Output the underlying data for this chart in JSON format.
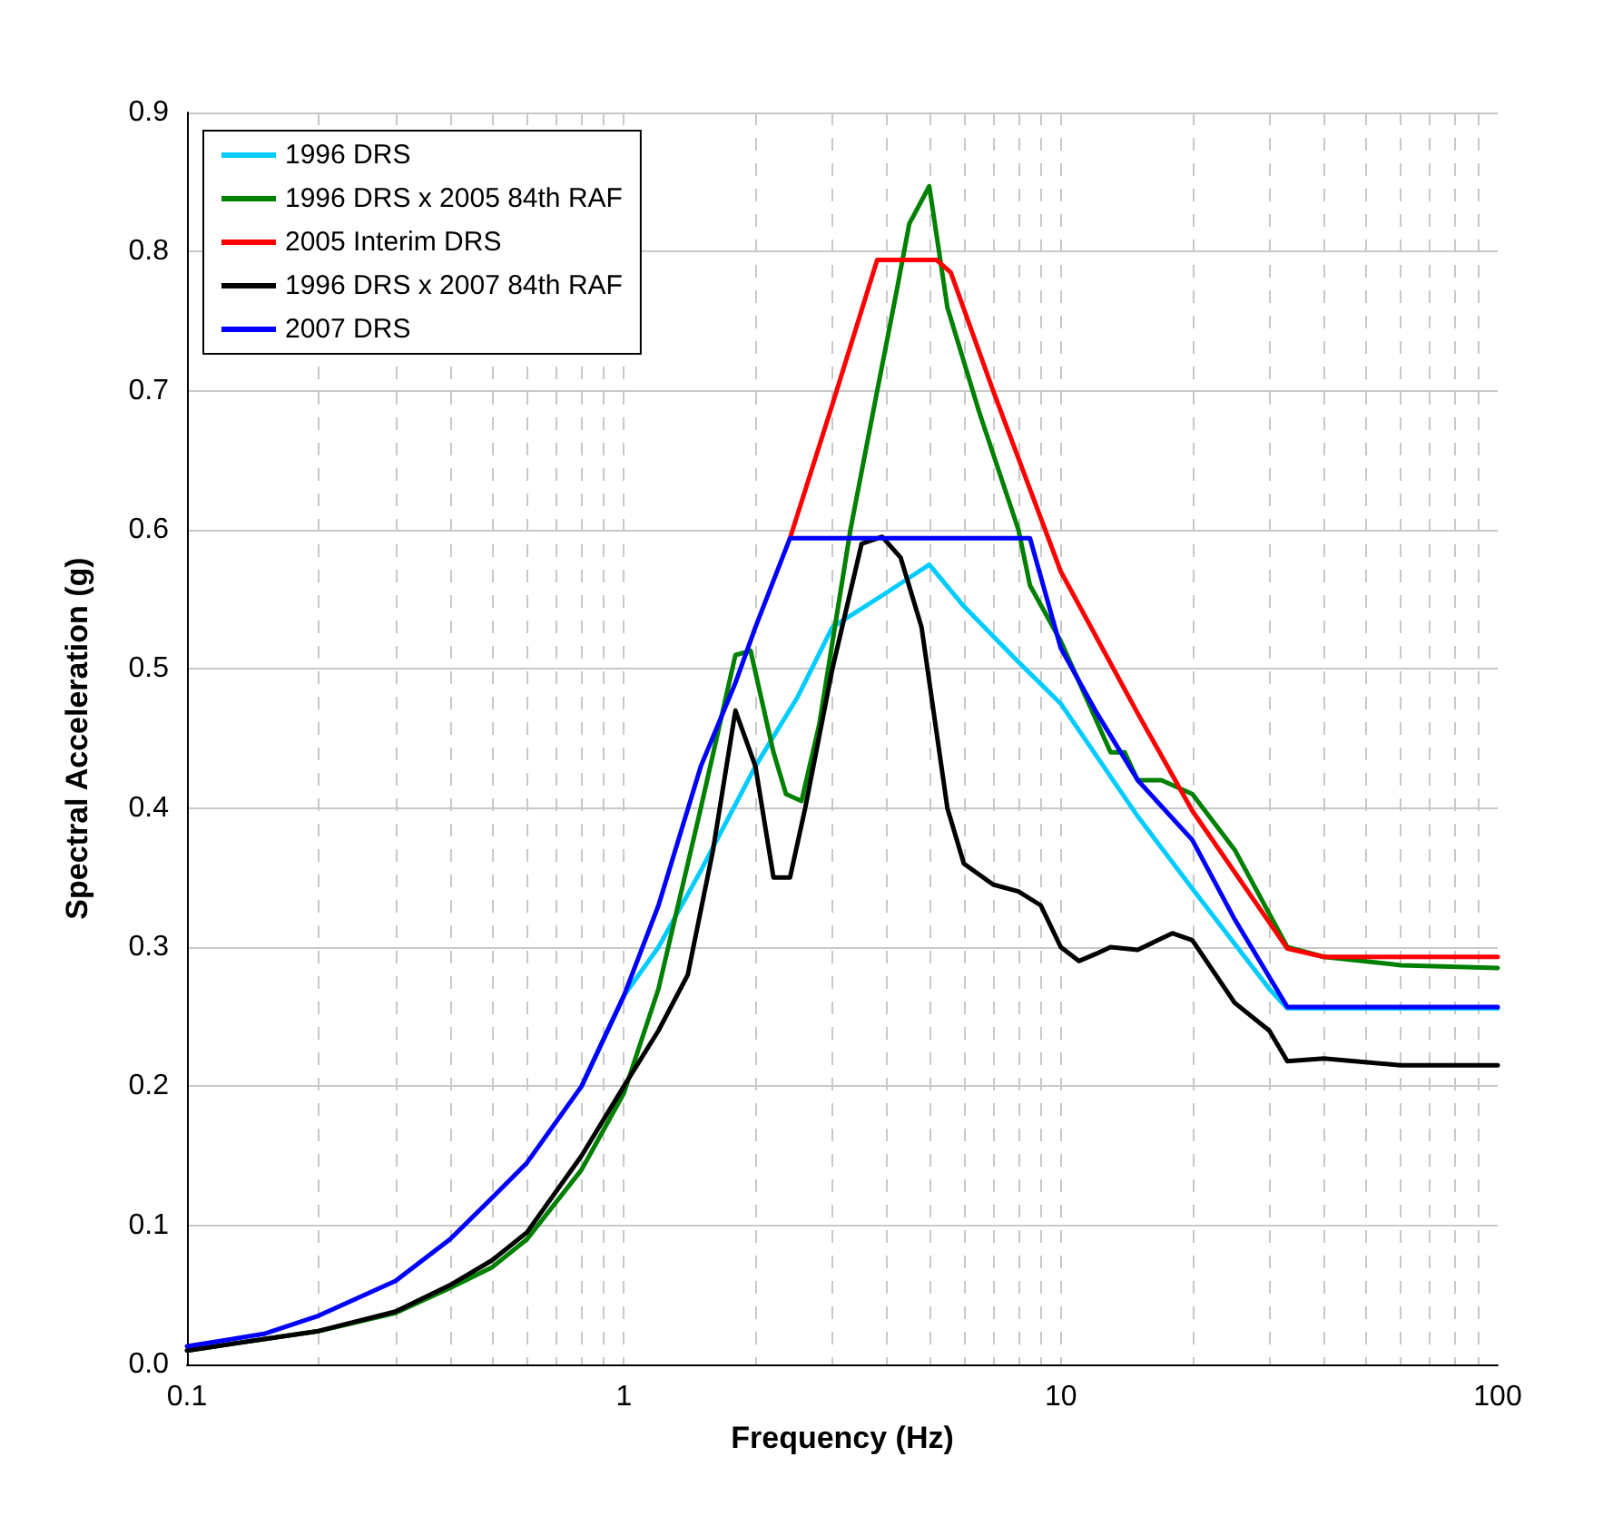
{
  "chart_data": {
    "type": "line",
    "xlabel": "Frequency (Hz)",
    "ylabel": "Spectral Acceleration (g)",
    "log": "x",
    "xlim": [
      0.1,
      100
    ],
    "xticks": [
      0.1,
      1,
      10,
      100
    ],
    "ylim": [
      0,
      0.9
    ],
    "yticks": [
      {
        "value": 0,
        "label": "0.0"
      },
      0.1,
      0.2,
      0.3,
      0.4,
      0.5,
      0.6,
      0.7,
      0.8,
      0.9
    ],
    "grid": true,
    "legend": "top left",
    "marker": "none",
    "line_style": "solid",
    "series": [
      {
        "name": "1996 DRS",
        "color": "#00ccff",
        "x": [
          0.8,
          1,
          1.2,
          1.5,
          2,
          2.5,
          3,
          4,
          5,
          6,
          8,
          10,
          15,
          20,
          30,
          33,
          100
        ],
        "values": [
          0.2,
          0.265,
          0.3,
          0.355,
          0.43,
          0.48,
          0.53,
          0.555,
          0.575,
          0.545,
          0.505,
          0.475,
          0.394,
          0.342,
          0.27,
          0.256,
          0.256
        ]
      },
      {
        "name": "1996 DRS x 2005 84th RAF",
        "color": "#008000",
        "x": [
          0.1,
          0.2,
          0.3,
          0.4,
          0.5,
          0.6,
          0.8,
          1,
          1.2,
          1.5,
          1.8,
          1.95,
          2.2,
          2.35,
          2.55,
          2.8,
          3.3,
          3.8,
          4.2,
          4.5,
          5,
          5.5,
          6.5,
          8,
          8.5,
          10,
          13,
          14,
          15,
          17,
          20,
          25,
          33,
          40,
          60,
          100
        ],
        "values": [
          0.01,
          0.024,
          0.037,
          0.055,
          0.07,
          0.09,
          0.14,
          0.195,
          0.27,
          0.4,
          0.51,
          0.513,
          0.44,
          0.41,
          0.405,
          0.46,
          0.6,
          0.7,
          0.77,
          0.82,
          0.847,
          0.76,
          0.685,
          0.6,
          0.56,
          0.52,
          0.44,
          0.44,
          0.42,
          0.42,
          0.41,
          0.37,
          0.3,
          0.293,
          0.287,
          0.285
        ]
      },
      {
        "name": "2005 Interim DRS",
        "color": "#ff0000",
        "x": [
          2.4,
          3,
          3.8,
          5.2,
          5.6,
          7,
          10,
          15,
          20,
          33,
          40,
          100
        ],
        "values": [
          0.594,
          0.69,
          0.794,
          0.794,
          0.785,
          0.7,
          0.57,
          0.468,
          0.398,
          0.299,
          0.293,
          0.293
        ]
      },
      {
        "name": "1996 DRS x 2007 84th RAF",
        "color": "#000000",
        "x": [
          0.1,
          0.2,
          0.3,
          0.4,
          0.5,
          0.6,
          0.8,
          1,
          1.2,
          1.4,
          1.6,
          1.8,
          2,
          2.2,
          2.4,
          2.6,
          3,
          3.5,
          3.9,
          4.3,
          4.8,
          5.5,
          6,
          7,
          8,
          9,
          10,
          11,
          12,
          13,
          15,
          18,
          20,
          25,
          30,
          33,
          40,
          60,
          100
        ],
        "values": [
          0.01,
          0.024,
          0.038,
          0.057,
          0.075,
          0.095,
          0.15,
          0.2,
          0.24,
          0.28,
          0.37,
          0.47,
          0.43,
          0.35,
          0.35,
          0.4,
          0.5,
          0.59,
          0.595,
          0.58,
          0.53,
          0.4,
          0.36,
          0.345,
          0.34,
          0.33,
          0.3,
          0.29,
          0.295,
          0.3,
          0.298,
          0.31,
          0.305,
          0.26,
          0.24,
          0.218,
          0.22,
          0.215,
          0.215
        ]
      },
      {
        "name": "2007 DRS",
        "color": "#0000ff",
        "x": [
          0.1,
          0.15,
          0.2,
          0.3,
          0.4,
          0.5,
          0.6,
          0.8,
          1,
          1.2,
          1.5,
          1.8,
          2,
          2.4,
          8.5,
          10,
          12,
          15,
          20,
          25,
          33,
          100
        ],
        "values": [
          0.013,
          0.022,
          0.035,
          0.06,
          0.09,
          0.12,
          0.145,
          0.2,
          0.265,
          0.33,
          0.43,
          0.49,
          0.53,
          0.594,
          0.594,
          0.515,
          0.47,
          0.42,
          0.377,
          0.32,
          0.257,
          0.257
        ]
      }
    ]
  }
}
